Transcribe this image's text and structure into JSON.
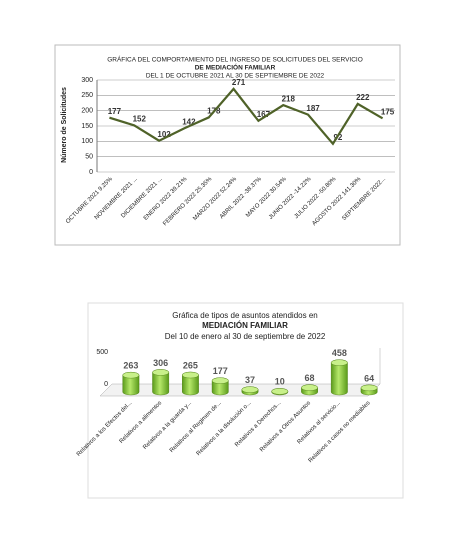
{
  "chart_data": [
    {
      "type": "line",
      "title": "GRÁFICA DEL COMPORTAMIENTO DEL INGRESO DE SOLICITUDES DEL SERVICIO",
      "subtitle": "DE MEDIACIÓN FAMILIAR",
      "period": "DEL 1 DE OCTUBRE 2021 AL 30 DE SEPTIEMBRE DE 2022",
      "y_label": "Número de Solicitudes",
      "categories": [
        "OCTUBRE 2021 9.25%",
        "NOVIEMBRE 2021 ...",
        "DICIEMBRE 2021 ...",
        "ENERO 2022 39.21%",
        "FEBRERO 2022 25.35%",
        "MARZO 2022 52.24%",
        "ABRIL 2022 -38.37%",
        "MAYO 2022 30.54%",
        "JUNIO 2022 -14.22%",
        "JULIO 2022 -50.80%",
        "AGOSTO 2022 141.30%",
        "SEPTIEMBRE 2022..."
      ],
      "values": [
        177,
        152,
        102,
        142,
        178,
        271,
        167,
        218,
        187,
        92,
        222,
        175
      ],
      "color": "#4f6228",
      "ylim": [
        0,
        300
      ],
      "yticks": [
        0,
        50,
        100,
        150,
        200,
        250,
        300
      ],
      "grid": true
    },
    {
      "type": "bar",
      "title": "Gráfica de tipos de asuntos atendidos en",
      "subtitle": "MEDIACIÓN FAMILIAR",
      "period": "Del 10 de enero al 30 de septiembre de 2022",
      "categories": [
        "Relativos a los Efectos del...",
        "Relativos a alimentos",
        "Relativos a la guarda y...",
        "Relativos al Regimen de...",
        "Relativos a la disolución o...",
        "Relativos a Derechos...",
        "Relativos a Otros Asuntos",
        "Relativos al servicio...",
        "Relativos a casos no mediables"
      ],
      "values": [
        263,
        306,
        265,
        177,
        37,
        10,
        68,
        458,
        64
      ],
      "color": "#7fbf2a",
      "ylim": [
        0,
        500
      ],
      "yticks": [
        0,
        500
      ],
      "grid": false
    }
  ]
}
